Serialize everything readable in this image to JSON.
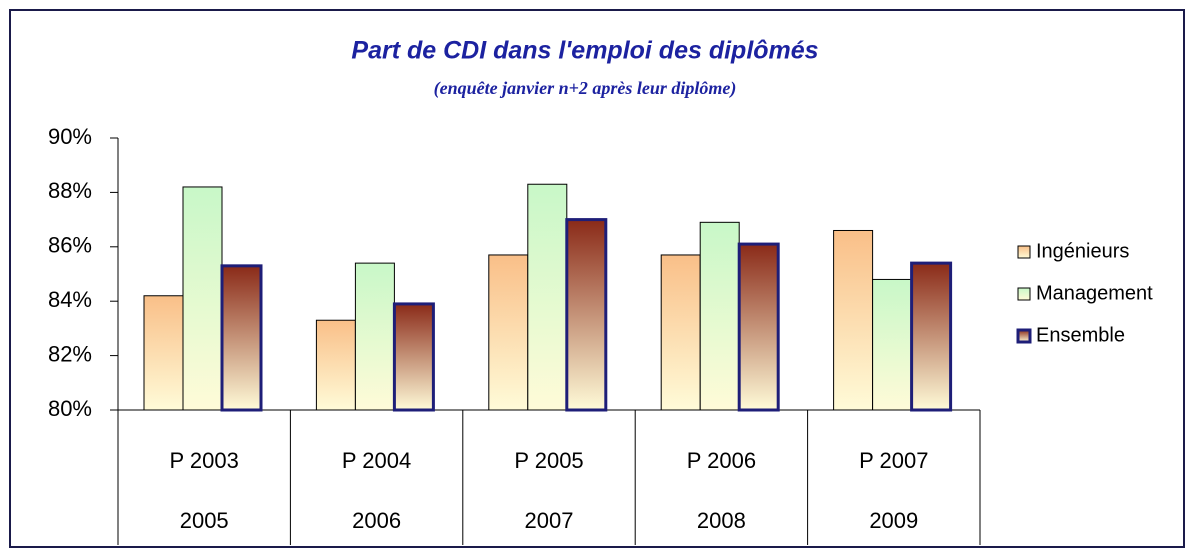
{
  "chart_data": {
    "type": "bar",
    "title": "Part de CDI dans l'emploi des diplômés",
    "subtitle": "(enquête janvier n+2 après leur diplôme)",
    "categories": [
      "P 2003",
      "P 2004",
      "P 2005",
      "P 2006",
      "P 2007"
    ],
    "subcategories": [
      "2005",
      "2006",
      "2007",
      "2008",
      "2009"
    ],
    "series": [
      {
        "name": "Ingénieurs",
        "color": "#f9bf88",
        "values": [
          84.2,
          83.3,
          85.7,
          85.7,
          86.6
        ]
      },
      {
        "name": "Management",
        "color": "#c8f8c8",
        "values": [
          88.2,
          85.4,
          88.3,
          86.9,
          84.8
        ]
      },
      {
        "name": "Ensemble",
        "color": "#8a2a18",
        "values": [
          85.3,
          83.9,
          87.0,
          86.1,
          85.4
        ]
      }
    ],
    "ylim": [
      80,
      90
    ],
    "yticks": [
      {
        "value": 80,
        "label": "80%"
      },
      {
        "value": 82,
        "label": "82%"
      },
      {
        "value": 84,
        "label": "84%"
      },
      {
        "value": 86,
        "label": "86%"
      },
      {
        "value": 88,
        "label": "88%"
      },
      {
        "value": 90,
        "label": "90%"
      }
    ],
    "legend": "right"
  }
}
